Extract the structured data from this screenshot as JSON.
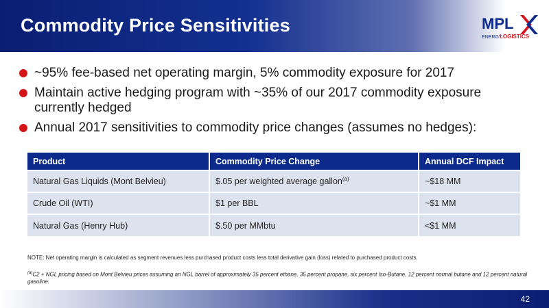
{
  "slide": {
    "title": "Commodity Price Sensitivities",
    "page_number": "42"
  },
  "logo": {
    "mark": "MPL",
    "subtitle_a": "ENERGY",
    "subtitle_b": "LOGISTICS",
    "colors": {
      "red": "#d4161b",
      "blue": "#0b2a8c"
    }
  },
  "bullets": [
    "~95% fee-based net operating margin, 5% commodity exposure for 2017",
    "Maintain active hedging program with ~35% of our 2017 commodity exposure currently hedged",
    "Annual 2017 sensitivities to commodity price changes (assumes no hedges):"
  ],
  "table": {
    "headers": [
      "Product",
      "Commodity Price Change",
      "Annual DCF Impact"
    ],
    "rows": [
      {
        "product": "Natural Gas Liquids (Mont Belvieu)",
        "change": "$.05 per weighted average gallon",
        "change_sup": "(a)",
        "impact": "~$18 MM"
      },
      {
        "product": "Crude Oil (WTI)",
        "change": "$1 per BBL",
        "change_sup": "",
        "impact": "~$1 MM"
      },
      {
        "product": "Natural Gas (Henry Hub)",
        "change": "$.50 per MMbtu",
        "change_sup": "",
        "impact": "<$1 MM"
      }
    ]
  },
  "notes": {
    "note": "NOTE: Net operating margin is calculated as segment revenues less purchased product costs less total derivative gain (loss) related to purchased product costs.",
    "footnote_marker": "(a)",
    "footnote": "C2 + NGL pricing based on Mont Belvieu prices assuming an NGL barrel of approximately 35 percent ethane, 35 percent propane, six percent Iso-Butane, 12 percent normal butane and 12 percent natural gasoline."
  },
  "colors": {
    "header_blue": "#0b2a8c",
    "bullet_red": "#d4161b",
    "row_fill": "#dde3ee"
  }
}
